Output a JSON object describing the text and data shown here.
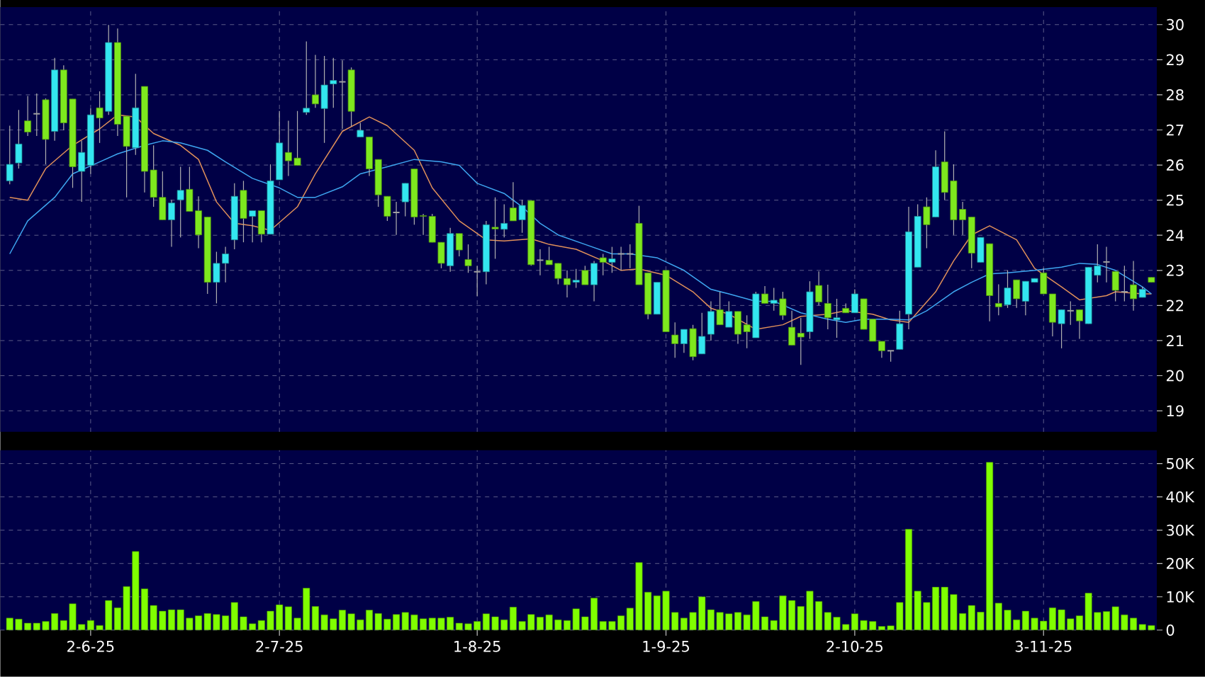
{
  "chart_data": [
    {
      "type": "candlestick",
      "categories": [
        null,
        null,
        null,
        null,
        null,
        null,
        null,
        null,
        null,
        null,
        null,
        null,
        null,
        null,
        null,
        null,
        null,
        null,
        null,
        null,
        null,
        null,
        null,
        null,
        null,
        null,
        null,
        null,
        null,
        null,
        null,
        null,
        null,
        null,
        null,
        null,
        null,
        null,
        null,
        null,
        null,
        null,
        null,
        null,
        null,
        null,
        null,
        null,
        null,
        null,
        null,
        null,
        null,
        null,
        null,
        null,
        null,
        null,
        null,
        null,
        null,
        null,
        null,
        null,
        null,
        null,
        null,
        null,
        null,
        null,
        null,
        null,
        null,
        null,
        null,
        null,
        null,
        null,
        null,
        null,
        null,
        null,
        null,
        null,
        null,
        null,
        null,
        null,
        null,
        null,
        null,
        null,
        null,
        null,
        null,
        null,
        null,
        null,
        null,
        null,
        null,
        null,
        null,
        null,
        null,
        null,
        null,
        null,
        null,
        null,
        null,
        null,
        null,
        null,
        null,
        null,
        null,
        null,
        null,
        null,
        null,
        null,
        null,
        null,
        null,
        null,
        null,
        null
      ],
      "ohlc": [
        [
          25.55,
          27.12,
          25.45,
          26.02
        ],
        [
          26.06,
          27.57,
          25.9,
          26.6
        ],
        [
          27.26,
          27.97,
          26.83,
          26.94
        ],
        [
          27.46,
          28.04,
          26.83,
          27.46
        ],
        [
          27.86,
          27.9,
          26.02,
          26.73
        ],
        [
          26.96,
          29.05,
          26.69,
          28.71
        ],
        [
          28.71,
          28.84,
          26.99,
          27.2
        ],
        [
          27.88,
          27.88,
          25.35,
          25.95
        ],
        [
          25.82,
          26.69,
          24.95,
          26.36
        ],
        [
          25.99,
          27.61,
          25.75,
          27.43
        ],
        [
          27.63,
          28.1,
          26.63,
          27.34
        ],
        [
          27.53,
          29.99,
          27.43,
          29.49
        ],
        [
          29.49,
          29.89,
          26.83,
          27.16
        ],
        [
          27.39,
          27.39,
          25.08,
          26.53
        ],
        [
          26.49,
          28.6,
          26.29,
          27.63
        ],
        [
          28.24,
          28.24,
          25.22,
          25.82
        ],
        [
          25.86,
          26.56,
          24.81,
          25.08
        ],
        [
          25.08,
          25.82,
          24.44,
          24.44
        ],
        [
          24.44,
          25.01,
          23.67,
          24.92
        ],
        [
          25.01,
          25.95,
          23.94,
          25.28
        ],
        [
          25.31,
          25.95,
          24.68,
          24.68
        ],
        [
          24.7,
          25.11,
          23.63,
          24.01
        ],
        [
          24.52,
          24.52,
          22.33,
          22.66
        ],
        [
          22.66,
          23.53,
          22.06,
          23.2
        ],
        [
          23.2,
          23.67,
          22.66,
          23.47
        ],
        [
          23.87,
          25.48,
          23.6,
          25.11
        ],
        [
          25.28,
          25.55,
          23.8,
          24.48
        ],
        [
          24.54,
          24.7,
          23.8,
          24.7
        ],
        [
          24.7,
          24.7,
          23.8,
          24.03
        ],
        [
          24.03,
          26.02,
          24.03,
          25.55
        ],
        [
          25.58,
          27.54,
          25.58,
          26.63
        ],
        [
          26.36,
          27.26,
          25.69,
          26.12
        ],
        [
          26.2,
          27.54,
          25.99,
          25.99
        ],
        [
          27.5,
          29.52,
          27.43,
          27.62
        ],
        [
          28.0,
          29.14,
          27.63,
          27.74
        ],
        [
          27.61,
          29.11,
          26.63,
          28.28
        ],
        [
          28.31,
          29.05,
          27.63,
          28.41
        ],
        [
          28.37,
          28.98,
          27.03,
          28.37
        ],
        [
          28.71,
          28.78,
          27.1,
          27.53
        ],
        [
          26.8,
          27.2,
          26.8,
          26.99
        ],
        [
          26.8,
          26.8,
          25.69,
          25.89
        ],
        [
          26.16,
          26.16,
          24.81,
          25.15
        ],
        [
          25.11,
          25.11,
          24.41,
          24.54
        ],
        [
          24.65,
          24.95,
          24.01,
          24.65
        ],
        [
          24.95,
          25.48,
          24.54,
          25.48
        ],
        [
          25.89,
          25.89,
          24.3,
          24.52
        ],
        [
          24.56,
          24.61,
          24.01,
          24.54
        ],
        [
          24.54,
          24.61,
          23.8,
          23.8
        ],
        [
          23.8,
          23.8,
          23.06,
          23.2
        ],
        [
          23.13,
          24.21,
          22.96,
          24.05
        ],
        [
          24.05,
          24.05,
          23.4,
          23.58
        ],
        [
          23.31,
          23.74,
          22.93,
          23.13
        ],
        [
          22.96,
          23.13,
          22.26,
          22.96
        ],
        [
          22.96,
          24.41,
          22.6,
          24.3
        ],
        [
          24.23,
          25.08,
          23.33,
          24.18
        ],
        [
          24.17,
          24.88,
          23.94,
          24.34
        ],
        [
          24.78,
          25.51,
          24.41,
          24.41
        ],
        [
          24.44,
          25.01,
          24.07,
          24.85
        ],
        [
          24.99,
          24.99,
          23.13,
          23.16
        ],
        [
          23.29,
          23.6,
          22.86,
          23.29
        ],
        [
          23.29,
          23.67,
          23.16,
          23.16
        ],
        [
          23.2,
          23.2,
          22.6,
          22.77
        ],
        [
          22.77,
          23.0,
          22.23,
          22.59
        ],
        [
          22.66,
          23.04,
          22.5,
          22.72
        ],
        [
          23.0,
          23.13,
          22.59,
          22.59
        ],
        [
          22.59,
          23.27,
          22.12,
          23.2
        ],
        [
          23.36,
          23.47,
          22.86,
          23.23
        ],
        [
          23.23,
          23.67,
          22.93,
          23.33
        ],
        [
          23.47,
          23.67,
          23.0,
          23.47
        ],
        [
          23.47,
          23.74,
          23.06,
          23.47
        ],
        [
          24.34,
          24.84,
          22.59,
          22.59
        ],
        [
          22.93,
          22.93,
          21.61,
          21.75
        ],
        [
          21.75,
          22.66,
          21.75,
          22.66
        ],
        [
          23.0,
          23.0,
          21.25,
          21.25
        ],
        [
          21.16,
          21.52,
          20.51,
          20.91
        ],
        [
          20.91,
          21.32,
          20.65,
          21.32
        ],
        [
          21.34,
          21.45,
          20.44,
          20.54
        ],
        [
          20.62,
          21.79,
          20.62,
          21.12
        ],
        [
          21.18,
          22.12,
          21.0,
          21.83
        ],
        [
          21.88,
          22.39,
          21.45,
          21.45
        ],
        [
          21.38,
          22.12,
          21.38,
          21.83
        ],
        [
          21.83,
          21.83,
          20.91,
          21.18
        ],
        [
          21.45,
          21.72,
          20.78,
          21.25
        ],
        [
          21.08,
          22.39,
          21.08,
          22.33
        ],
        [
          22.33,
          22.55,
          22.06,
          22.06
        ],
        [
          22.06,
          22.5,
          21.85,
          22.15
        ],
        [
          22.19,
          22.39,
          21.59,
          21.72
        ],
        [
          21.38,
          21.85,
          20.87,
          20.87
        ],
        [
          21.21,
          21.65,
          20.31,
          21.1
        ],
        [
          21.25,
          22.69,
          21.05,
          22.39
        ],
        [
          22.57,
          22.97,
          22.0,
          22.1
        ],
        [
          22.06,
          22.59,
          21.32,
          21.65
        ],
        [
          21.59,
          22.19,
          21.08,
          21.65
        ],
        [
          21.92,
          22.06,
          21.79,
          21.79
        ],
        [
          21.79,
          22.46,
          21.79,
          22.33
        ],
        [
          22.19,
          22.19,
          21.32,
          21.32
        ],
        [
          21.61,
          21.61,
          20.98,
          20.98
        ],
        [
          20.98,
          20.98,
          20.51,
          20.71
        ],
        [
          20.71,
          20.71,
          20.4,
          20.71
        ],
        [
          20.75,
          21.85,
          20.75,
          21.48
        ],
        [
          21.75,
          24.81,
          21.32,
          24.1
        ],
        [
          23.09,
          24.88,
          23.09,
          24.54
        ],
        [
          24.81,
          25.08,
          23.63,
          24.3
        ],
        [
          24.52,
          26.42,
          24.52,
          25.95
        ],
        [
          26.09,
          26.96,
          25.01,
          25.22
        ],
        [
          25.55,
          26.02,
          24.01,
          24.44
        ],
        [
          24.74,
          24.95,
          24.01,
          24.44
        ],
        [
          24.52,
          24.52,
          23.06,
          23.49
        ],
        [
          23.23,
          23.94,
          23.23,
          23.94
        ],
        [
          23.76,
          23.76,
          21.55,
          22.28
        ],
        [
          22.06,
          22.6,
          21.72,
          21.96
        ],
        [
          22.02,
          23.0,
          21.93,
          22.5
        ],
        [
          22.73,
          22.73,
          21.93,
          22.19
        ],
        [
          22.12,
          22.69,
          21.72,
          22.69
        ],
        [
          22.66,
          22.77,
          22.66,
          22.77
        ],
        [
          22.93,
          23.06,
          22.33,
          22.33
        ],
        [
          22.33,
          22.33,
          21.12,
          21.52
        ],
        [
          21.48,
          21.88,
          20.78,
          21.88
        ],
        [
          21.85,
          22.12,
          21.45,
          21.85
        ],
        [
          21.88,
          21.88,
          21.05,
          21.56
        ],
        [
          21.48,
          23.09,
          21.48,
          23.09
        ],
        [
          22.86,
          23.74,
          22.66,
          23.13
        ],
        [
          23.24,
          23.67,
          22.66,
          23.24
        ],
        [
          22.97,
          22.97,
          22.12,
          22.43
        ],
        [
          22.39,
          23.13,
          22.12,
          22.39
        ],
        [
          22.59,
          23.27,
          21.85,
          22.19
        ],
        [
          22.23,
          22.53,
          22.23,
          22.46
        ],
        [
          22.8,
          22.8,
          22.66,
          22.66
        ]
      ],
      "colors": [
        "#33e6f0",
        "#33e6f0",
        "#7ee81e",
        "#a0a0a0",
        "#7ee81e",
        "#33e6f0",
        "#7ee81e",
        "#7ee81e",
        "#33e6f0",
        "#33e6f0",
        "#7ee81e",
        "#33e6f0",
        "#7ee81e",
        "#7ee81e",
        "#33e6f0",
        "#7ee81e",
        "#7ee81e",
        "#7ee81e",
        "#33e6f0",
        "#33e6f0",
        "#7ee81e",
        "#7ee81e",
        "#7ee81e",
        "#33e6f0",
        "#33e6f0",
        "#33e6f0",
        "#7ee81e",
        "#33e6f0",
        "#7ee81e",
        "#33e6f0",
        "#33e6f0",
        "#7ee81e",
        "#7ee81e",
        "#33e6f0",
        "#7ee81e",
        "#33e6f0",
        "#33e6f0",
        "#a0a0a0",
        "#7ee81e",
        "#33e6f0",
        "#7ee81e",
        "#7ee81e",
        "#7ee81e",
        "#a0a0a0",
        "#33e6f0",
        "#7ee81e",
        "#7ee81e",
        "#7ee81e",
        "#7ee81e",
        "#33e6f0",
        "#7ee81e",
        "#7ee81e",
        "#a0a0a0",
        "#33e6f0",
        "#7ee81e",
        "#33e6f0",
        "#7ee81e",
        "#33e6f0",
        "#7ee81e",
        "#a0a0a0",
        "#7ee81e",
        "#7ee81e",
        "#7ee81e",
        "#33e6f0",
        "#7ee81e",
        "#33e6f0",
        "#7ee81e",
        "#33e6f0",
        "#a0a0a0",
        "#a0a0a0",
        "#7ee81e",
        "#7ee81e",
        "#33e6f0",
        "#7ee81e",
        "#7ee81e",
        "#33e6f0",
        "#7ee81e",
        "#33e6f0",
        "#33e6f0",
        "#7ee81e",
        "#33e6f0",
        "#7ee81e",
        "#7ee81e",
        "#33e6f0",
        "#7ee81e",
        "#33e6f0",
        "#7ee81e",
        "#7ee81e",
        "#7ee81e",
        "#33e6f0",
        "#7ee81e",
        "#7ee81e",
        "#33e6f0",
        "#7ee81e",
        "#33e6f0",
        "#7ee81e",
        "#7ee81e",
        "#7ee81e",
        "#a0a0a0",
        "#33e6f0",
        "#33e6f0",
        "#33e6f0",
        "#7ee81e",
        "#33e6f0",
        "#7ee81e",
        "#7ee81e",
        "#7ee81e",
        "#7ee81e",
        "#33e6f0",
        "#7ee81e",
        "#7ee81e",
        "#33e6f0",
        "#7ee81e",
        "#33e6f0",
        "#33e6f0",
        "#7ee81e",
        "#7ee81e",
        "#33e6f0",
        "#a0a0a0",
        "#7ee81e",
        "#33e6f0",
        "#33e6f0",
        "#a0a0a0",
        "#7ee81e",
        "#a0a0a0",
        "#7ee81e",
        "#33e6f0",
        "#7ee81e"
      ],
      "series": [
        {
          "type": "line",
          "color": "#e0905a",
          "values": [
            25.08,
            null,
            25.0,
            null,
            25.9,
            null,
            null,
            26.56,
            null,
            null,
            27.03,
            null,
            27.43,
            null,
            27.37,
            null,
            26.9,
            null,
            null,
            26.56,
            null,
            26.16,
            null,
            24.95,
            null,
            24.34,
            null,
            24.27,
            null,
            24.14,
            null,
            null,
            24.81,
            null,
            25.75,
            null,
            null,
            26.96,
            null,
            null,
            27.37,
            null,
            27.12,
            null,
            null,
            26.42,
            null,
            25.35,
            null,
            null,
            24.41,
            null,
            null,
            23.87,
            null,
            23.84,
            null,
            null,
            23.9,
            null,
            23.74,
            null,
            null,
            23.6,
            null,
            null,
            23.27,
            null,
            23.0,
            null,
            23.04,
            null,
            null,
            22.86,
            null,
            null,
            22.39,
            null,
            21.92,
            null,
            21.75,
            null,
            null,
            21.32,
            null,
            null,
            21.45,
            null,
            21.69,
            null,
            null,
            21.75,
            null,
            21.85,
            null,
            null,
            21.75,
            null,
            21.59,
            null,
            21.52,
            null,
            null,
            22.39,
            null,
            23.27,
            null,
            24.01,
            null,
            24.27,
            null,
            null,
            23.87,
            null,
            23.06,
            null,
            null,
            22.53,
            null,
            22.16,
            null,
            null,
            22.28,
            22.39,
            null,
            null,
            22.33,
            22.33
          ]
        },
        {
          "type": "line",
          "color": "#3ea6f0",
          "values": [
            23.47,
            null,
            24.41,
            null,
            null,
            25.08,
            null,
            25.75,
            null,
            null,
            26.09,
            null,
            26.32,
            null,
            null,
            26.56,
            null,
            26.69,
            null,
            26.63,
            null,
            null,
            26.42,
            null,
            26.09,
            null,
            null,
            25.62,
            null,
            null,
            25.35,
            null,
            25.08,
            null,
            25.08,
            null,
            null,
            25.38,
            null,
            25.75,
            null,
            null,
            25.95,
            null,
            null,
            26.16,
            null,
            null,
            26.09,
            null,
            25.99,
            null,
            25.48,
            null,
            null,
            25.19,
            null,
            24.81,
            null,
            24.34,
            null,
            24.01,
            null,
            null,
            23.74,
            null,
            null,
            23.47,
            null,
            23.47,
            null,
            null,
            23.36,
            null,
            null,
            23.0,
            null,
            null,
            22.46,
            null,
            22.33,
            null,
            null,
            22.12,
            null,
            22.12,
            null,
            null,
            21.79,
            null,
            null,
            21.61,
            null,
            21.52,
            null,
            21.61,
            null,
            null,
            21.61,
            null,
            21.59,
            null,
            21.85,
            null,
            null,
            22.39,
            null,
            22.66,
            null,
            22.9,
            null,
            22.93,
            null,
            null,
            23.0,
            null,
            null,
            23.09,
            null,
            23.2,
            null,
            23.17,
            null,
            23.0,
            null,
            null,
            22.53,
            22.33
          ]
        }
      ],
      "ylim": [
        18.4,
        30.5
      ],
      "yticks": [
        19,
        20,
        21,
        22,
        23,
        24,
        25,
        26,
        27,
        28,
        29,
        30
      ],
      "grid": true,
      "tick_labels": "y"
    },
    {
      "type": "bar",
      "categories": [
        null,
        null,
        null,
        null,
        null,
        null,
        null,
        null,
        null,
        "2-6-25",
        null,
        null,
        null,
        null,
        null,
        null,
        null,
        null,
        null,
        null,
        null,
        null,
        null,
        null,
        null,
        null,
        null,
        null,
        null,
        null,
        "2-7-25",
        null,
        null,
        null,
        null,
        null,
        null,
        null,
        null,
        null,
        null,
        null,
        null,
        null,
        null,
        null,
        null,
        null,
        null,
        null,
        null,
        null,
        "1-8-25",
        null,
        null,
        null,
        null,
        null,
        null,
        null,
        null,
        null,
        null,
        null,
        null,
        null,
        null,
        null,
        null,
        null,
        null,
        null,
        null,
        "1-9-25",
        null,
        null,
        null,
        null,
        null,
        null,
        null,
        null,
        null,
        null,
        null,
        null,
        null,
        null,
        null,
        null,
        null,
        null,
        null,
        null,
        "2-10-25",
        null,
        null,
        null,
        null,
        null,
        null,
        null,
        null,
        null,
        null,
        null,
        null,
        null,
        null,
        null,
        null,
        null,
        null,
        null,
        null,
        "3-11-25",
        null,
        null,
        null,
        null,
        null,
        null,
        null,
        null,
        null,
        null,
        null,
        null
      ],
      "values": [
        3600,
        3300,
        2100,
        2100,
        2600,
        5000,
        2900,
        7900,
        1700,
        2900,
        1400,
        8900,
        6700,
        13100,
        23600,
        12400,
        7400,
        5700,
        6100,
        6100,
        3600,
        4300,
        5000,
        4700,
        4300,
        8300,
        4000,
        1900,
        2900,
        5700,
        7600,
        7000,
        3600,
        12600,
        7100,
        4600,
        3400,
        6000,
        4900,
        3100,
        6000,
        5000,
        3300,
        4700,
        5300,
        4600,
        3400,
        3600,
        3600,
        3900,
        2100,
        1900,
        2600,
        4900,
        4000,
        3100,
        6900,
        2600,
        4700,
        3900,
        4600,
        3100,
        2900,
        6400,
        4000,
        9600,
        2600,
        2600,
        4300,
        6600,
        20300,
        11400,
        10300,
        11700,
        5300,
        3600,
        5300,
        10000,
        6100,
        5300,
        4900,
        5300,
        4600,
        8600,
        4000,
        2900,
        10300,
        8900,
        7100,
        11700,
        8600,
        5300,
        3900,
        1700,
        4900,
        2900,
        2600,
        1100,
        1300,
        8300,
        30300,
        11700,
        8300,
        12900,
        12900,
        10700,
        5000,
        7400,
        5400,
        50400,
        8100,
        6000,
        3100,
        5700,
        3600,
        2700,
        6700,
        6100,
        3400,
        4300,
        11100,
        5300,
        5600,
        7000,
        4600,
        3600,
        1700,
        1400
      ],
      "color": "#80ff00",
      "ylim": [
        0,
        54000
      ],
      "yticks": [
        0,
        {
          "value": 10000,
          "label": "10K"
        },
        {
          "value": 20000,
          "label": "20K"
        },
        {
          "value": 30000,
          "label": "30K"
        },
        {
          "value": 40000,
          "label": "40K"
        },
        {
          "value": 50000,
          "label": "50K"
        }
      ],
      "grid": true
    }
  ]
}
